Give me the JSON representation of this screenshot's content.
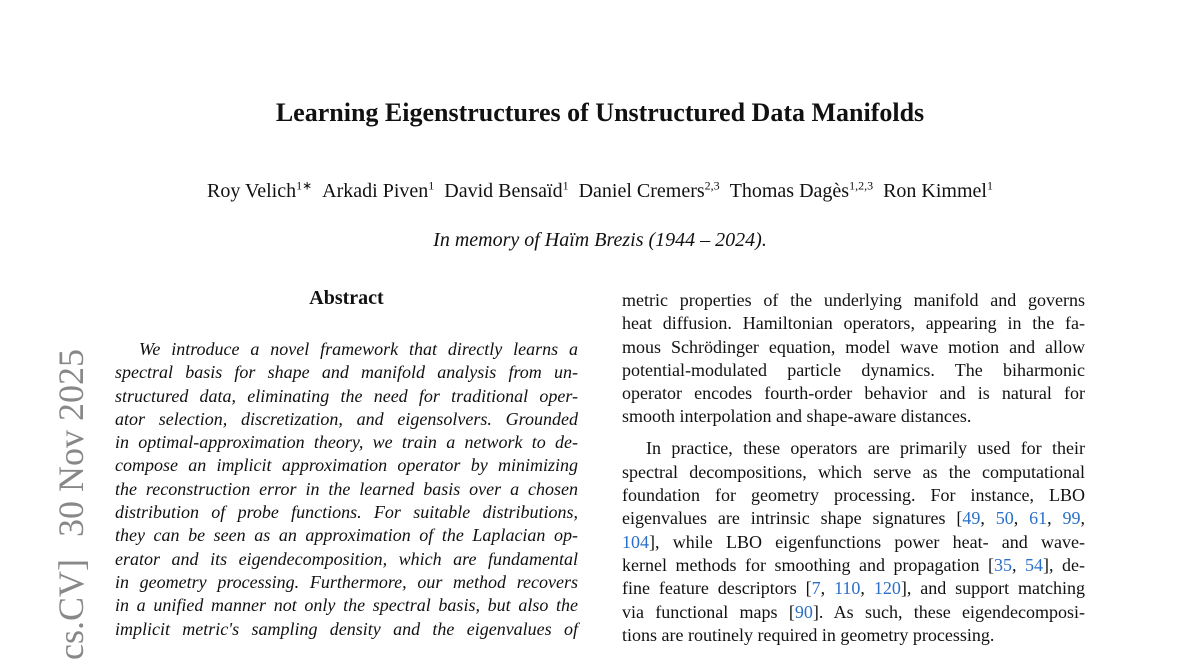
{
  "header": {
    "title": "Learning Eigenstructures of Unstructured Data Manifolds",
    "authors": [
      {
        "name": "Roy Velich",
        "affil": "1∗"
      },
      {
        "name": "Arkadi Piven",
        "affil": "1"
      },
      {
        "name": "David Bensaïd",
        "affil": "1"
      },
      {
        "name": "Daniel Cremers",
        "affil": "2,3"
      },
      {
        "name": "Thomas Dagès",
        "affil": "1,2,3"
      },
      {
        "name": "Ron Kimmel",
        "affil": "1"
      }
    ],
    "dedication": "In memory of Haïm Brezis (1944 – 2024)."
  },
  "side_stamp": {
    "category": "cs.CV]",
    "date": "30 Nov 2025"
  },
  "abstract": {
    "heading": "Abstract",
    "lines": [
      [
        "We introduce a novel framework that directly learns a"
      ],
      [
        "spectral basis for shape and manifold analysis from un-"
      ],
      [
        "structured data, eliminating the need for traditional oper-"
      ],
      [
        "ator selection, discretization, and eigensolvers. Grounded"
      ],
      [
        "in optimal-approximation theory, we train a network to de-"
      ],
      [
        "compose an implicit approximation operator by minimizing"
      ],
      [
        "the reconstruction error in the learned basis over a chosen"
      ],
      [
        "distribution of probe functions. For suitable distributions,"
      ],
      [
        "they can be seen as an approximation of the Laplacian op-"
      ],
      [
        "erator and its eigendecomposition, which are fundamental"
      ],
      [
        "in geometry processing. Furthermore, our method recovers"
      ],
      [
        "in a unified manner not only the spectral basis, but also the"
      ],
      [
        "implicit metric's sampling density and the eigenvalues of"
      ]
    ]
  },
  "body": {
    "paragraphs": [
      {
        "lines": [
          [
            "metric properties of the underlying manifold and governs"
          ],
          [
            "heat diffusion. Hamiltonian operators, appearing in the fa-"
          ],
          [
            "mous Schrödinger equation, model wave motion and allow"
          ],
          [
            "potential-modulated particle dynamics. The biharmonic"
          ],
          [
            "operator encodes fourth-order behavior and is natural for"
          ],
          [
            "smooth interpolation and shape-aware distances."
          ]
        ]
      },
      {
        "lines": [
          [
            "In practice, these operators are primarily used for their"
          ],
          [
            "spectral decompositions, which serve as the computational"
          ],
          [
            "foundation for geometry processing. For instance, LBO"
          ],
          [
            "eigenvalues are intrinsic shape signatures [",
            {
              "ref": "49"
            },
            ", ",
            {
              "ref": "50"
            },
            ", ",
            {
              "ref": "61"
            },
            ", ",
            {
              "ref": "99"
            },
            ","
          ],
          [
            {
              "ref": "104"
            },
            "], while LBO eigenfunctions power heat- and wave-"
          ],
          [
            "kernel methods for smoothing and propagation [",
            {
              "ref": "35"
            },
            ", ",
            {
              "ref": "54"
            },
            "], de-"
          ],
          [
            "fine feature descriptors [",
            {
              "ref": "7"
            },
            ", ",
            {
              "ref": "110"
            },
            ", ",
            {
              "ref": "120"
            },
            "], and support matching"
          ],
          [
            "via functional maps [",
            {
              "ref": "90"
            },
            "]. As such, these eigendecomposi-"
          ],
          [
            "tions are routinely required in geometry processing."
          ]
        ]
      }
    ]
  }
}
